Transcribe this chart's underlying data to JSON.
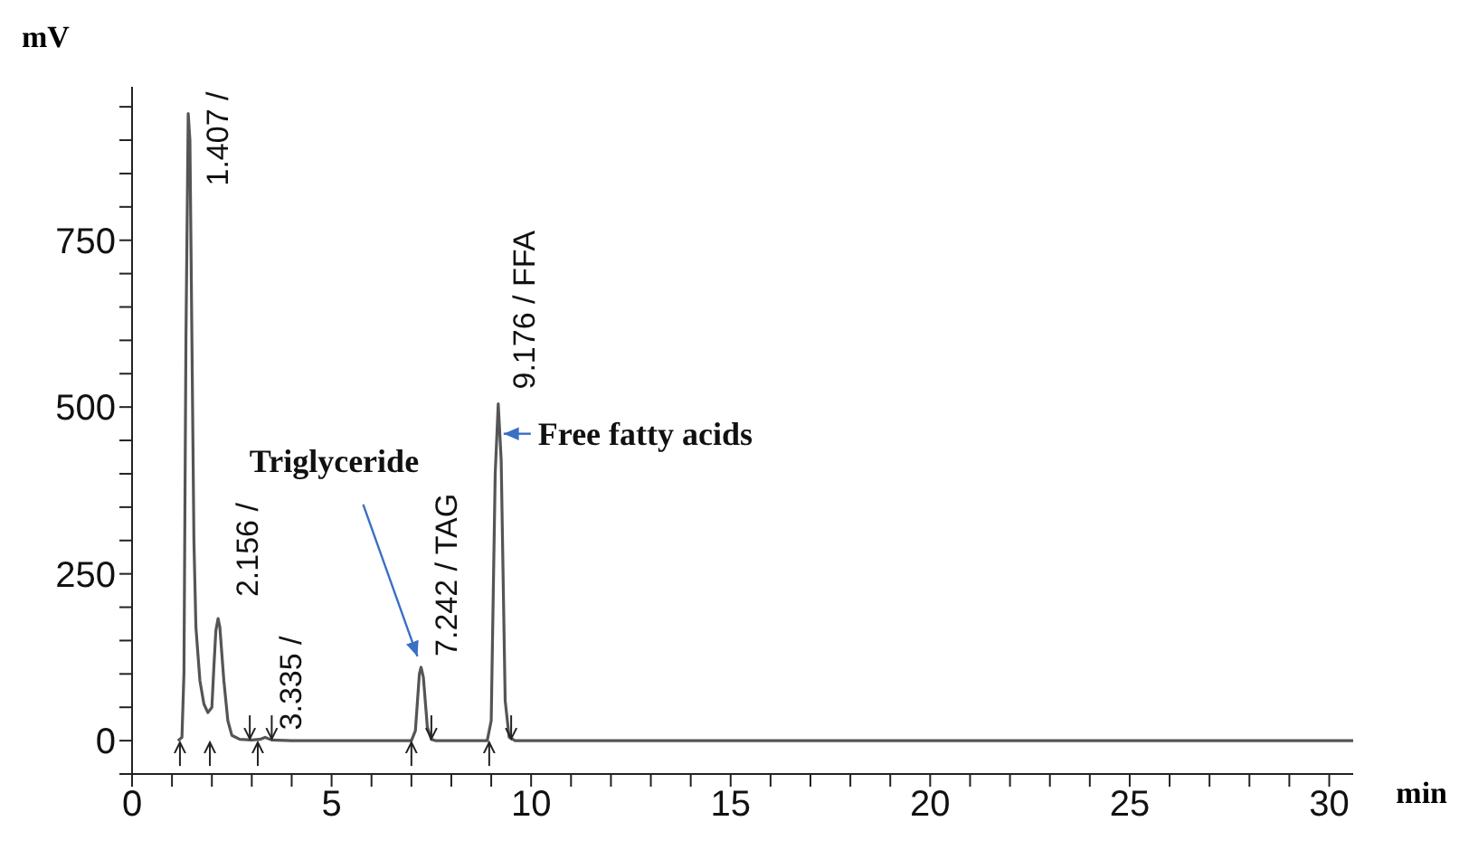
{
  "chart_data": {
    "type": "line",
    "xlabel": "min",
    "ylabel": "mV",
    "x": [
      1.15,
      1.25,
      1.3,
      1.35,
      1.407,
      1.45,
      1.5,
      1.55,
      1.6,
      1.7,
      1.8,
      1.9,
      2.0,
      2.05,
      2.1,
      2.156,
      2.2,
      2.3,
      2.4,
      2.5,
      2.7,
      3.0,
      3.2,
      3.335,
      3.5,
      4.0,
      7.0,
      7.1,
      7.2,
      7.242,
      7.3,
      7.4,
      7.5,
      7.6,
      8.9,
      9.0,
      9.1,
      9.176,
      9.25,
      9.35,
      9.45,
      9.6,
      30.6
    ],
    "series": [
      {
        "color": "#555555",
        "values": [
          0,
          5,
          100,
          600,
          940,
          900,
          600,
          300,
          170,
          90,
          55,
          42,
          50,
          110,
          165,
          183,
          170,
          90,
          30,
          8,
          2,
          1,
          2,
          5,
          1,
          0,
          0,
          15,
          100,
          110,
          95,
          20,
          2,
          0,
          0,
          30,
          400,
          505,
          420,
          60,
          5,
          0,
          0
        ]
      }
    ],
    "xlim": [
      0,
      30.6
    ],
    "ylim": [
      -50,
      980
    ],
    "xticks": [
      0,
      {
        "value": 1,
        "label": null
      },
      {
        "value": 2,
        "label": null
      },
      {
        "value": 3,
        "label": null
      },
      {
        "value": 4,
        "label": null
      },
      5,
      {
        "value": 6,
        "label": null
      },
      {
        "value": 7,
        "label": null
      },
      {
        "value": 8,
        "label": null
      },
      {
        "value": 9,
        "label": null
      },
      10,
      {
        "value": 11,
        "label": null
      },
      {
        "value": 12,
        "label": null
      },
      {
        "value": 13,
        "label": null
      },
      {
        "value": 14,
        "label": null
      },
      15,
      {
        "value": 16,
        "label": null
      },
      {
        "value": 17,
        "label": null
      },
      {
        "value": 18,
        "label": null
      },
      {
        "value": 19,
        "label": null
      },
      20,
      {
        "value": 21,
        "label": null
      },
      {
        "value": 22,
        "label": null
      },
      {
        "value": 23,
        "label": null
      },
      {
        "value": 24,
        "label": null
      },
      25,
      {
        "value": 26,
        "label": null
      },
      {
        "value": 27,
        "label": null
      },
      {
        "value": 28,
        "label": null
      },
      {
        "value": 29,
        "label": null
      },
      30
    ],
    "yticks": [
      {
        "value": -50,
        "label": null
      },
      0,
      {
        "value": 50,
        "label": null
      },
      {
        "value": 100,
        "label": null
      },
      {
        "value": 150,
        "label": null
      },
      {
        "value": 200,
        "label": null
      },
      250,
      {
        "value": 300,
        "label": null
      },
      {
        "value": 350,
        "label": null
      },
      {
        "value": 400,
        "label": null
      },
      {
        "value": 450,
        "label": null
      },
      500,
      {
        "value": 550,
        "label": null
      },
      {
        "value": 600,
        "label": null
      },
      {
        "value": 650,
        "label": null
      },
      {
        "value": 700,
        "label": null
      },
      750,
      {
        "value": 800,
        "label": null
      },
      {
        "value": 850,
        "label": null
      },
      {
        "value": 900,
        "label": null
      },
      {
        "value": 950,
        "label": null
      }
    ],
    "grid": false,
    "legend": false,
    "marker": "none",
    "line_style": "solid",
    "annotations": [
      {
        "text": "1.407 /",
        "x": 1.407,
        "y": 940
      },
      {
        "text": "2.156 /",
        "x": 2.156,
        "y": 183
      },
      {
        "text": "3.335 /",
        "x": 3.335,
        "y": 5
      },
      {
        "text": "7.242 / TAG",
        "x": 7.242,
        "y": 110
      },
      {
        "text": "9.176 / FFA",
        "x": 9.176,
        "y": 505
      },
      {
        "text": "Triglyceride",
        "x": 7.242,
        "y": 110
      },
      {
        "text": "Free fatty acids",
        "x": 9.176,
        "y": 460
      }
    ]
  }
}
